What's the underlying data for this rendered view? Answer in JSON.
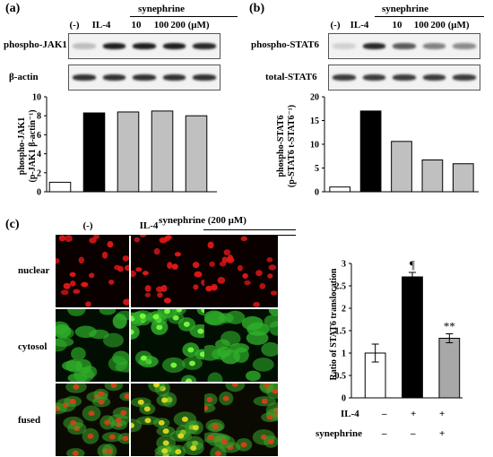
{
  "panel_a": {
    "label": "(a)",
    "treatment_header": "synephrine",
    "lanes": [
      "(-)",
      "IL-4",
      "10",
      "100",
      "200 (μM)"
    ],
    "blot_labels": [
      "phospho-JAK1",
      "β-actin"
    ],
    "band_intensity_pJAK1": [
      0.15,
      0.95,
      0.95,
      0.95,
      0.9
    ],
    "band_intensity_actin": [
      0.85,
      0.85,
      0.85,
      0.85,
      0.85
    ]
  },
  "panel_b": {
    "label": "(b)",
    "treatment_header": "synephrine",
    "lanes": [
      "(-)",
      "IL-4",
      "10",
      "100",
      "200 (μM)"
    ],
    "blot_labels": [
      "phospho-STAT6",
      "total-STAT6"
    ],
    "band_intensity_pSTAT6": [
      0.05,
      0.9,
      0.65,
      0.45,
      0.4
    ],
    "band_intensity_total": [
      0.8,
      0.8,
      0.8,
      0.8,
      0.8
    ]
  },
  "panel_c": {
    "label": "(c)",
    "col_headers": [
      "(-)",
      "IL-4",
      "synephrine (200 μM)"
    ],
    "row_labels": [
      "nuclear",
      "cytosol",
      "fused"
    ],
    "treatment_rows": [
      {
        "name": "IL-4",
        "signs": [
          "–",
          "+",
          "+"
        ]
      },
      {
        "name": "synephrine",
        "signs": [
          "–",
          "–",
          "+"
        ]
      }
    ]
  },
  "chart_data": [
    {
      "type": "bar",
      "categories": [
        "(-)",
        "IL-4",
        "10",
        "100",
        "200"
      ],
      "values": [
        1.0,
        8.3,
        8.4,
        8.5,
        8.0
      ],
      "bar_fills": [
        "#ffffff",
        "#000000",
        "#c0c0c0",
        "#c0c0c0",
        "#c0c0c0"
      ],
      "ylabel_line1": "phospho-JAK1",
      "ylabel_line2": "(p-JAK1 β-actin⁻¹)",
      "ylim": [
        0,
        10
      ],
      "yticks": [
        0,
        2,
        4,
        6,
        8,
        10
      ]
    },
    {
      "type": "bar",
      "categories": [
        "(-)",
        "IL-4",
        "10",
        "100",
        "200"
      ],
      "values": [
        1.0,
        17.0,
        10.6,
        6.7,
        5.9
      ],
      "bar_fills": [
        "#ffffff",
        "#000000",
        "#c0c0c0",
        "#c0c0c0",
        "#c0c0c0"
      ],
      "ylabel_line1": "phospho-STAT6",
      "ylabel_line2": "(p-STAT6 t-STAT6⁻¹)",
      "ylim": [
        0,
        20
      ],
      "yticks": [
        0,
        5,
        10,
        15,
        20
      ]
    },
    {
      "type": "bar",
      "categories": [
        "control",
        "IL-4",
        "IL-4 + synephrine"
      ],
      "values": [
        1.0,
        2.7,
        1.33
      ],
      "errors": [
        0.2,
        0.1,
        0.1
      ],
      "bar_fills": [
        "#ffffff",
        "#000000",
        "#a8a8a8"
      ],
      "annotations": [
        "",
        "¶",
        "**"
      ],
      "ylabel": "Ratio of STAT6 translocation",
      "ylim": [
        0,
        3
      ],
      "yticks": [
        0,
        0.5,
        1,
        1.5,
        2,
        2.5,
        3
      ]
    }
  ]
}
